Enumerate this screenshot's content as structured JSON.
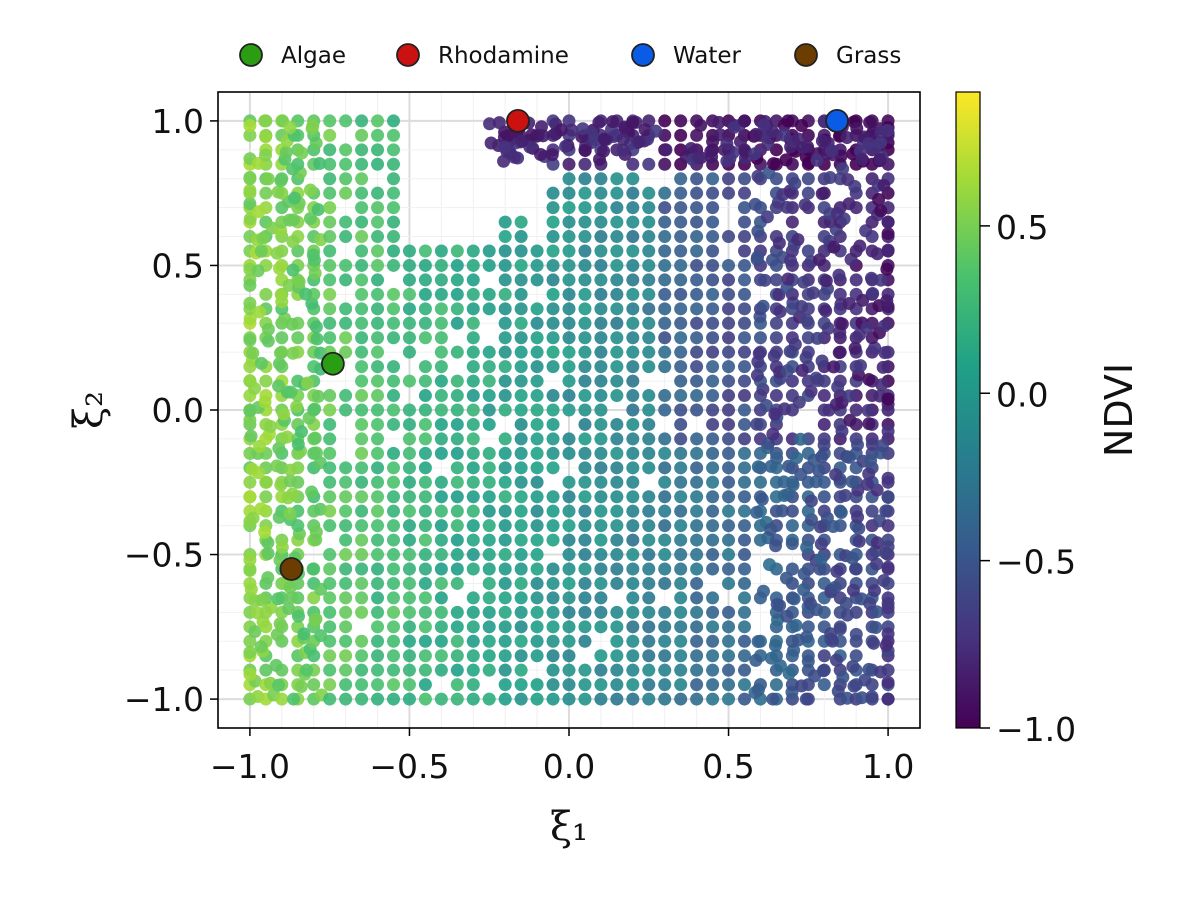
{
  "chart_data": {
    "type": "scatter",
    "xlabel": "ξ₁",
    "ylabel": "ξ₂",
    "xlim": [
      -1.1,
      1.1
    ],
    "ylim": [
      -1.1,
      1.1
    ],
    "xticks": [
      "−1.0",
      "−0.5",
      "0.0",
      "0.5",
      "1.0"
    ],
    "yticks": [
      "−1.0",
      "−0.5",
      "0.0",
      "0.5",
      "1.0"
    ],
    "grid": true,
    "legend_position": "top",
    "colorbar": {
      "label": "NDVI",
      "colormap": "viridis",
      "range": [
        -1.0,
        0.9
      ],
      "ticks": [
        "−1.0",
        "−0.5",
        "0.0",
        "0.5"
      ]
    },
    "highlight_points": [
      {
        "name": "Algae",
        "x": -0.74,
        "y": 0.16,
        "color": "#2a9d12"
      },
      {
        "name": "Rhodamine",
        "x": -0.16,
        "y": 1.0,
        "color": "#cc1111"
      },
      {
        "name": "Water",
        "x": 0.84,
        "y": 1.0,
        "color": "#0a5be6"
      },
      {
        "name": "Grass",
        "x": -0.87,
        "y": -0.55,
        "color": "#6b3d00"
      }
    ],
    "point_cloud_description": "Dense grid of NDVI-colored samples over [-1,1]x[-1,1]; high NDVI (yellow-green) near xi1=-1, low NDVI (purple-blue) toward xi1=1 and the upper band xi2=0.9-1.0; gaps in the upper middle."
  }
}
